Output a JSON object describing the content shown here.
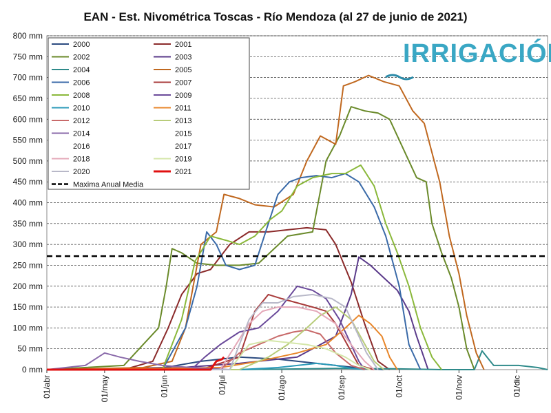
{
  "chart_data": {
    "type": "line",
    "title": "EAN - Est. Nivométrica Toscas - Río Mendoza (al 27 de junio de 2021)",
    "logo_text": "IRRIGACIÓN",
    "xlabel": "",
    "ylabel": "",
    "y_unit": "mm",
    "ylim": [
      0,
      800
    ],
    "y_ticks": [
      0,
      50,
      100,
      150,
      200,
      250,
      300,
      350,
      400,
      450,
      500,
      550,
      600,
      650,
      700,
      750,
      800
    ],
    "y_tick_labels": [
      "0 mm",
      "50 mm",
      "100 mm",
      "150 mm",
      "200 mm",
      "250 mm",
      "300 mm",
      "350 mm",
      "400 mm",
      "450 mm",
      "500 mm",
      "550 mm",
      "600 mm",
      "650 mm",
      "700 mm",
      "750 mm",
      "800 mm"
    ],
    "xlim_day": [
      0,
      260
    ],
    "x_ticks": [
      {
        "day": 0,
        "label": "01/abr"
      },
      {
        "day": 30,
        "label": "01/may"
      },
      {
        "day": 61,
        "label": "01/jun"
      },
      {
        "day": 91,
        "label": "01/jul"
      },
      {
        "day": 122,
        "label": "01/ago"
      },
      {
        "day": 153,
        "label": "01/sep"
      },
      {
        "day": 183,
        "label": "01/oct"
      },
      {
        "day": 214,
        "label": "01/nov"
      },
      {
        "day": 244,
        "label": "01/dic"
      }
    ],
    "grid": "horizontal-dashed",
    "legend_position": "top-left",
    "reference_line": {
      "name": "Maxima Anual Media",
      "value": 272,
      "color": "#000000"
    },
    "series": [
      {
        "name": "2000",
        "color": "#2a4a7f",
        "points": [
          [
            0,
            0
          ],
          [
            30,
            2
          ],
          [
            61,
            5
          ],
          [
            80,
            20
          ],
          [
            100,
            30
          ],
          [
            120,
            25
          ],
          [
            140,
            15
          ],
          [
            160,
            5
          ],
          [
            175,
            0
          ]
        ]
      },
      {
        "name": "2001",
        "color": "#8b2a2a",
        "points": [
          [
            0,
            0
          ],
          [
            40,
            0
          ],
          [
            55,
            20
          ],
          [
            63,
            100
          ],
          [
            70,
            180
          ],
          [
            78,
            230
          ],
          [
            85,
            240
          ],
          [
            95,
            300
          ],
          [
            105,
            330
          ],
          [
            115,
            330
          ],
          [
            125,
            335
          ],
          [
            135,
            340
          ],
          [
            145,
            335
          ],
          [
            150,
            300
          ],
          [
            158,
            210
          ],
          [
            165,
            110
          ],
          [
            172,
            20
          ],
          [
            178,
            0
          ]
        ]
      },
      {
        "name": "2002",
        "color": "#6a8a2a",
        "points": [
          [
            0,
            0
          ],
          [
            40,
            10
          ],
          [
            50,
            60
          ],
          [
            58,
            100
          ],
          [
            62,
            200
          ],
          [
            65,
            290
          ],
          [
            70,
            280
          ],
          [
            78,
            255
          ],
          [
            88,
            250
          ],
          [
            100,
            250
          ],
          [
            110,
            255
          ],
          [
            125,
            320
          ],
          [
            138,
            330
          ],
          [
            145,
            500
          ],
          [
            152,
            560
          ],
          [
            158,
            630
          ],
          [
            165,
            620
          ],
          [
            172,
            615
          ],
          [
            178,
            600
          ],
          [
            185,
            530
          ],
          [
            192,
            460
          ],
          [
            197,
            450
          ],
          [
            200,
            350
          ],
          [
            205,
            280
          ],
          [
            210,
            220
          ],
          [
            214,
            150
          ],
          [
            218,
            50
          ],
          [
            222,
            0
          ]
        ]
      },
      {
        "name": "2003",
        "color": "#5a3a8a",
        "points": [
          [
            0,
            0
          ],
          [
            70,
            5
          ],
          [
            100,
            15
          ],
          [
            130,
            30
          ],
          [
            150,
            80
          ],
          [
            158,
            180
          ],
          [
            162,
            270
          ],
          [
            168,
            250
          ],
          [
            175,
            220
          ],
          [
            182,
            190
          ],
          [
            188,
            140
          ],
          [
            192,
            80
          ],
          [
            198,
            0
          ]
        ]
      },
      {
        "name": "2004",
        "color": "#2e8a8a",
        "points": [
          [
            0,
            0
          ],
          [
            100,
            0
          ],
          [
            150,
            3
          ],
          [
            180,
            2
          ],
          [
            205,
            0
          ],
          [
            222,
            0
          ],
          [
            226,
            45
          ],
          [
            232,
            10
          ],
          [
            245,
            10
          ],
          [
            255,
            5
          ],
          [
            260,
            0
          ]
        ]
      },
      {
        "name": "2005",
        "color": "#c0681f",
        "points": [
          [
            0,
            0
          ],
          [
            50,
            5
          ],
          [
            65,
            20
          ],
          [
            72,
            100
          ],
          [
            80,
            300
          ],
          [
            88,
            330
          ],
          [
            92,
            420
          ],
          [
            100,
            410
          ],
          [
            108,
            395
          ],
          [
            118,
            390
          ],
          [
            128,
            420
          ],
          [
            135,
            500
          ],
          [
            142,
            560
          ],
          [
            150,
            540
          ],
          [
            154,
            680
          ],
          [
            160,
            690
          ],
          [
            167,
            705
          ],
          [
            175,
            690
          ],
          [
            183,
            680
          ],
          [
            190,
            620
          ],
          [
            196,
            590
          ],
          [
            200,
            520
          ],
          [
            204,
            450
          ],
          [
            209,
            320
          ],
          [
            214,
            230
          ],
          [
            218,
            130
          ],
          [
            223,
            40
          ],
          [
            227,
            0
          ]
        ]
      },
      {
        "name": "2006",
        "color": "#3a6aa8",
        "points": [
          [
            0,
            0
          ],
          [
            60,
            0
          ],
          [
            72,
            100
          ],
          [
            78,
            200
          ],
          [
            83,
            330
          ],
          [
            88,
            300
          ],
          [
            93,
            250
          ],
          [
            100,
            240
          ],
          [
            108,
            250
          ],
          [
            115,
            350
          ],
          [
            120,
            420
          ],
          [
            126,
            450
          ],
          [
            132,
            460
          ],
          [
            140,
            465
          ],
          [
            148,
            460
          ],
          [
            155,
            470
          ],
          [
            162,
            450
          ],
          [
            170,
            390
          ],
          [
            176,
            320
          ],
          [
            183,
            200
          ],
          [
            188,
            60
          ],
          [
            194,
            0
          ]
        ]
      },
      {
        "name": "2007",
        "color": "#a83a3a",
        "points": [
          [
            0,
            0
          ],
          [
            80,
            0
          ],
          [
            100,
            30
          ],
          [
            108,
            140
          ],
          [
            115,
            180
          ],
          [
            122,
            170
          ],
          [
            130,
            160
          ],
          [
            138,
            150
          ],
          [
            145,
            140
          ],
          [
            150,
            110
          ],
          [
            156,
            60
          ],
          [
            162,
            10
          ],
          [
            170,
            0
          ]
        ]
      },
      {
        "name": "2008",
        "color": "#8ab83a",
        "points": [
          [
            0,
            0
          ],
          [
            60,
            0
          ],
          [
            70,
            120
          ],
          [
            77,
            260
          ],
          [
            85,
            320
          ],
          [
            93,
            310
          ],
          [
            100,
            300
          ],
          [
            108,
            320
          ],
          [
            116,
            360
          ],
          [
            122,
            380
          ],
          [
            130,
            440
          ],
          [
            138,
            460
          ],
          [
            148,
            470
          ],
          [
            155,
            470
          ],
          [
            163,
            490
          ],
          [
            170,
            440
          ],
          [
            176,
            350
          ],
          [
            182,
            280
          ],
          [
            188,
            200
          ],
          [
            194,
            100
          ],
          [
            200,
            30
          ],
          [
            205,
            0
          ]
        ]
      },
      {
        "name": "2009",
        "color": "#6a4a9a",
        "points": [
          [
            0,
            0
          ],
          [
            75,
            0
          ],
          [
            82,
            30
          ],
          [
            90,
            60
          ],
          [
            100,
            90
          ],
          [
            110,
            100
          ],
          [
            120,
            140
          ],
          [
            130,
            200
          ],
          [
            138,
            190
          ],
          [
            145,
            170
          ],
          [
            152,
            120
          ],
          [
            158,
            60
          ],
          [
            162,
            20
          ],
          [
            165,
            0
          ]
        ]
      },
      {
        "name": "2010",
        "color": "#2a9ab8",
        "points": [
          [
            0,
            0
          ],
          [
            100,
            0
          ],
          [
            120,
            5
          ],
          [
            140,
            15
          ],
          [
            150,
            10
          ],
          [
            158,
            3
          ],
          [
            165,
            0
          ]
        ]
      },
      {
        "name": "2011",
        "color": "#e8862a",
        "points": [
          [
            0,
            0
          ],
          [
            90,
            5
          ],
          [
            110,
            20
          ],
          [
            130,
            40
          ],
          [
            145,
            60
          ],
          [
            155,
            100
          ],
          [
            162,
            130
          ],
          [
            168,
            110
          ],
          [
            174,
            80
          ],
          [
            178,
            30
          ],
          [
            182,
            0
          ]
        ]
      },
      {
        "name": "2012",
        "color": "#c86a6a",
        "points": [
          [
            0,
            0
          ],
          [
            90,
            0
          ],
          [
            100,
            40
          ],
          [
            110,
            60
          ],
          [
            120,
            80
          ],
          [
            128,
            90
          ],
          [
            135,
            95
          ],
          [
            142,
            85
          ],
          [
            150,
            40
          ],
          [
            158,
            10
          ],
          [
            165,
            0
          ]
        ]
      },
      {
        "name": "2013",
        "color": "#b8cc7a",
        "points": [
          [
            0,
            0
          ],
          [
            100,
            0
          ],
          [
            115,
            30
          ],
          [
            125,
            60
          ],
          [
            135,
            100
          ],
          [
            142,
            130
          ],
          [
            150,
            150
          ],
          [
            158,
            120
          ],
          [
            164,
            70
          ],
          [
            170,
            20
          ],
          [
            175,
            0
          ]
        ]
      },
      {
        "name": "2014",
        "color": "#8a6aaa",
        "points": [
          [
            0,
            0
          ],
          [
            20,
            10
          ],
          [
            30,
            40
          ],
          [
            38,
            30
          ],
          [
            48,
            20
          ],
          [
            60,
            10
          ],
          [
            75,
            5
          ],
          [
            95,
            0
          ]
        ]
      },
      {
        "name": "2015",
        "color": "#ffffff",
        "points": [
          [
            0,
            0
          ],
          [
            10,
            0
          ]
        ]
      },
      {
        "name": "2016",
        "color": "#ffffff",
        "points": [
          [
            0,
            0
          ],
          [
            10,
            0
          ]
        ]
      },
      {
        "name": "2017",
        "color": "#ffffff",
        "points": [
          [
            0,
            0
          ],
          [
            10,
            0
          ]
        ]
      },
      {
        "name": "2018",
        "color": "#e4a8b8",
        "points": [
          [
            0,
            0
          ],
          [
            90,
            0
          ],
          [
            105,
            110
          ],
          [
            112,
            140
          ],
          [
            120,
            150
          ],
          [
            130,
            150
          ],
          [
            140,
            140
          ],
          [
            150,
            110
          ],
          [
            158,
            60
          ],
          [
            165,
            20
          ],
          [
            170,
            0
          ]
        ]
      },
      {
        "name": "2019",
        "color": "#d4e6a8",
        "points": [
          [
            0,
            0
          ],
          [
            95,
            0
          ],
          [
            105,
            60
          ],
          [
            115,
            70
          ],
          [
            125,
            65
          ],
          [
            135,
            60
          ],
          [
            145,
            50
          ],
          [
            155,
            30
          ],
          [
            162,
            10
          ],
          [
            168,
            0
          ]
        ]
      },
      {
        "name": "2020",
        "color": "#b8b8c8",
        "points": [
          [
            0,
            0
          ],
          [
            95,
            0
          ],
          [
            105,
            120
          ],
          [
            112,
            160
          ],
          [
            120,
            160
          ],
          [
            128,
            175
          ],
          [
            138,
            180
          ],
          [
            148,
            170
          ],
          [
            155,
            150
          ],
          [
            160,
            100
          ],
          [
            166,
            40
          ],
          [
            172,
            0
          ]
        ]
      },
      {
        "name": "2021",
        "color": "#e01010",
        "points": [
          [
            0,
            0
          ],
          [
            85,
            0
          ],
          [
            88,
            20
          ],
          [
            91,
            25
          ],
          [
            92,
            30
          ]
        ]
      }
    ]
  }
}
